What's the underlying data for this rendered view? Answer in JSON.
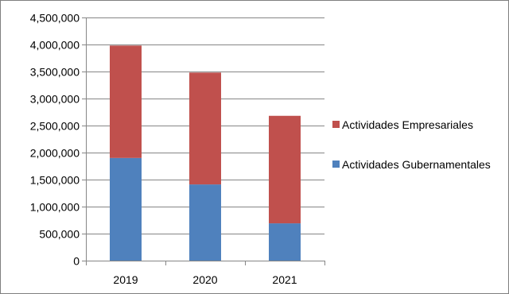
{
  "chart_data": {
    "type": "bar",
    "stacked": true,
    "categories": [
      "2019",
      "2020",
      "2021"
    ],
    "series": [
      {
        "name": "Actividades Gubernamentales",
        "values": [
          1900000,
          1410000,
          690000
        ],
        "color": "#4f81bd"
      },
      {
        "name": "Actividades Empresariales",
        "values": [
          2080000,
          2070000,
          1990000
        ],
        "color": "#c0504d"
      }
    ],
    "yticks": [
      "0",
      "500,000",
      "1,000,000",
      "1,500,000",
      "2,000,000",
      "2,500,000",
      "3,000,000",
      "3,500,000",
      "4,000,000",
      "4,500,000"
    ],
    "ylim": [
      0,
      4500000
    ],
    "grid": true,
    "legend_position": "right",
    "legend_order": [
      1,
      0
    ],
    "title": "",
    "xlabel": "",
    "ylabel": ""
  }
}
